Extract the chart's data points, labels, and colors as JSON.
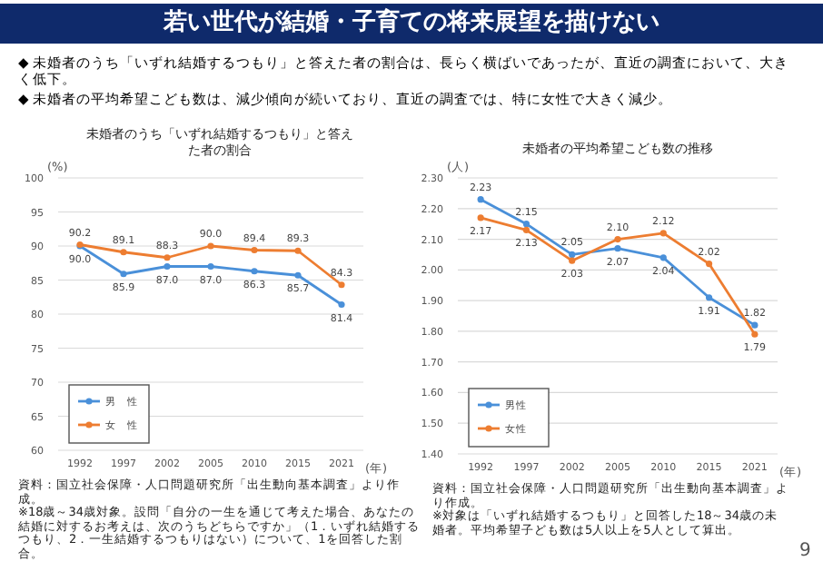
{
  "chart_data": [
    {
      "type": "line",
      "title": "未婚者のうち「いずれ結婚するつもり」と答えた者の割合",
      "ylabel": "(%)",
      "xlabel": "(年)",
      "categories": [
        "1992",
        "1997",
        "2002",
        "2005",
        "2010",
        "2015",
        "2021"
      ],
      "series": [
        {
          "name": "男　性",
          "color": "#4a90d9",
          "values": [
            90.0,
            85.9,
            87.0,
            87.0,
            86.3,
            85.7,
            81.4
          ],
          "value_labels": [
            "90.0",
            "85.9",
            "87.0",
            "87.0",
            "86.3",
            "85.7",
            "81.4"
          ]
        },
        {
          "name": "女　性",
          "color": "#ed7d31",
          "values": [
            90.2,
            89.1,
            88.3,
            90.0,
            89.4,
            89.3,
            84.3
          ],
          "value_labels": [
            "90.2",
            "89.1",
            "88.3",
            "90.0",
            "89.4",
            "89.3",
            "84.3"
          ]
        }
      ],
      "ylim": [
        60,
        100
      ],
      "yticks": [
        60,
        65,
        70,
        75,
        80,
        85,
        90,
        95,
        100
      ],
      "grid": "y",
      "legend": "bottom left",
      "marker": "circle",
      "annotations": [
        "若い世代が結婚・子育ての将来展望を描けない",
        "◆ 未婚者のうち「いずれ結婚するつもり」と答えた者の割合は、長らく横ばいであったが、直近の調査において、大きく低下。",
        "◆ 未婚者の平均希望こども数は、減少傾向が続いており、直近の調査では、特に女性で大きく減少。",
        "資料：国立社会保障・人口問題研究所「出生動向基本調査」より作成。",
        "※18歳～34歳対象。設問「自分の一生を通じて考えた場合、あなたの結婚に対するお考えは、次のうちどちらですか」（1．いずれ結婚するつもり、2．一生結婚するつもりはない）について、1を回答した割合。"
      ]
    },
    {
      "type": "line",
      "title": "未婚者の平均希望こども数の推移",
      "ylabel": "(人)",
      "xlabel": "(年)",
      "categories": [
        "1992",
        "1997",
        "2002",
        "2005",
        "2010",
        "2015",
        "2021"
      ],
      "series": [
        {
          "name": "男性",
          "color": "#4a90d9",
          "values": [
            2.23,
            2.15,
            2.05,
            2.07,
            2.04,
            1.91,
            1.82
          ],
          "value_labels": [
            "2.23",
            "2.15",
            "2.05",
            "2.07",
            "2.04",
            "1.91",
            "1.82"
          ]
        },
        {
          "name": "女性",
          "color": "#ed7d31",
          "values": [
            2.17,
            2.13,
            2.03,
            2.1,
            2.12,
            2.02,
            1.79
          ],
          "value_labels": [
            "2.17",
            "2.13",
            "2.03",
            "2.10",
            "2.12",
            "2.02",
            "1.79"
          ]
        }
      ],
      "ylim": [
        1.4,
        2.3
      ],
      "yticks": [
        {
          "value": 1.4,
          "label": "1.40"
        },
        {
          "value": 1.5,
          "label": "1.50"
        },
        {
          "value": 1.6,
          "label": "1.60"
        },
        {
          "value": 1.7,
          "label": "1.70"
        },
        {
          "value": 1.8,
          "label": "1.80"
        },
        {
          "value": 1.9,
          "label": "1.90"
        },
        {
          "value": 2.0,
          "label": "2.00"
        },
        {
          "value": 2.1,
          "label": "2.10"
        },
        {
          "value": 2.2,
          "label": "2.20"
        },
        {
          "value": 2.3,
          "label": "2.30"
        }
      ],
      "grid": "y",
      "legend": "bottom left",
      "marker": "circle",
      "annotations": [
        "資料：国立社会保障・人口問題研究所「出生動向基本調査」より作成。",
        "※対象は「いずれ結婚するつもり」と回答した18～34歳の未婚者。平均希望子ども数は5人以上を5人として算出。",
        "9"
      ]
    }
  ]
}
